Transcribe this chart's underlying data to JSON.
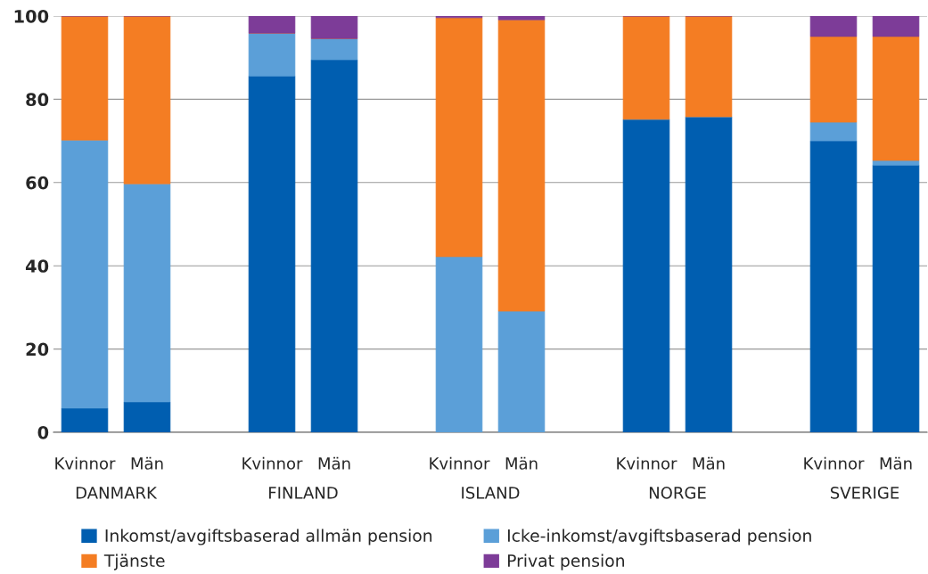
{
  "chart_data": {
    "type": "bar",
    "stacked": true,
    "categories": [
      "Kvinnor",
      "Män",
      null,
      "Kvinnor",
      "Män",
      null,
      "Kvinnor",
      "Män",
      null,
      "Kvinnor",
      "Män",
      null,
      "Kvinnor",
      "Män"
    ],
    "series": [
      {
        "name": "Inkomst/avgiftsbaserad allmän pension",
        "color": "#005eb0",
        "values": [
          5.8,
          7.3,
          null,
          85.6,
          89.5,
          null,
          0,
          0,
          null,
          75.2,
          75.8,
          null,
          70.0,
          64.2
        ]
      },
      {
        "name": "Icke-inkomst/avgiftsbaserad pension",
        "color": "#5b9fd8",
        "values": [
          64.4,
          52.4,
          null,
          10.3,
          5.1,
          null,
          42.2,
          29.1,
          null,
          0,
          0,
          null,
          4.5,
          1.1
        ]
      },
      {
        "name": "Tjänste",
        "color": "#f47d23",
        "values": [
          29.8,
          40.3,
          null,
          0,
          0,
          null,
          57.4,
          70.0,
          null,
          24.8,
          24.2,
          null,
          20.6,
          29.8
        ]
      },
      {
        "name": "Privat pension",
        "color": "#7d3c98",
        "values": [
          0,
          0,
          null,
          4.1,
          5.4,
          null,
          0.4,
          0.9,
          null,
          0,
          0,
          null,
          4.9,
          4.9
        ]
      }
    ],
    "annotations": [
      "DANMARK",
      "FINLAND",
      "ISLAND",
      "NORGE",
      "SVERIGE"
    ],
    "ylim": [
      0,
      100
    ],
    "yticks": [
      0,
      20,
      40,
      60,
      80,
      100
    ],
    "grid": "y",
    "legend": "bottom"
  }
}
